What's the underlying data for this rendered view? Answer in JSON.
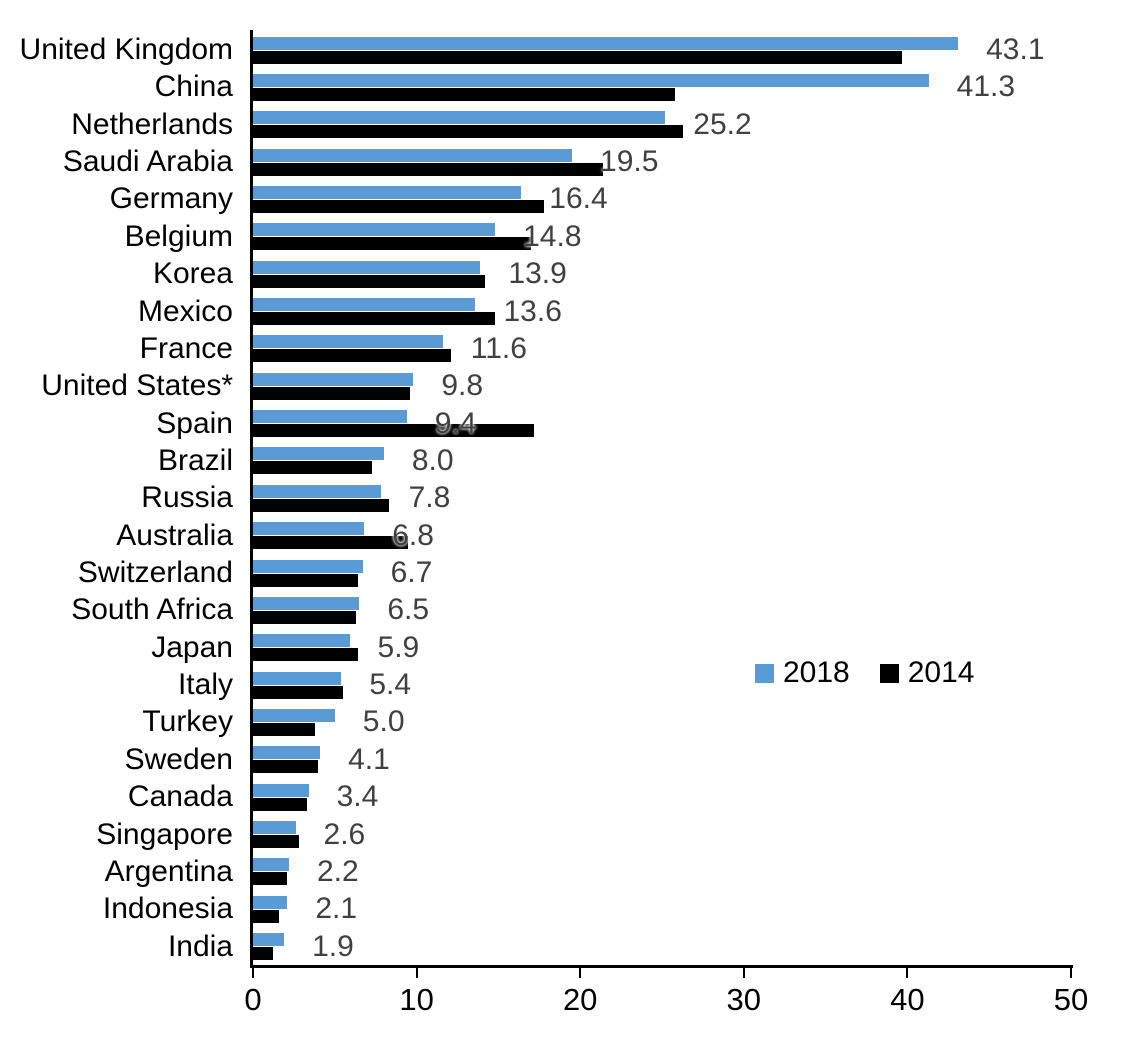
{
  "chart_data": {
    "type": "bar",
    "orientation": "horizontal",
    "title": "",
    "xlabel": "",
    "ylabel": "",
    "xlim": [
      0,
      50
    ],
    "x_ticks": [
      "0",
      "10",
      "20",
      "30",
      "40",
      "50"
    ],
    "grid": false,
    "legend_position": "middle-right",
    "categories": [
      "United Kingdom",
      "China",
      "Netherlands",
      "Saudi Arabia",
      "Germany",
      "Belgium",
      "Korea",
      "Mexico",
      "France",
      "United States*",
      "Spain",
      "Brazil",
      "Russia",
      "Australia",
      "Switzerland",
      "South Africa",
      "Japan",
      "Italy",
      "Turkey",
      "Sweden",
      "Canada",
      "Singapore",
      "Argentina",
      "Indonesia",
      "India"
    ],
    "series": [
      {
        "name": "2018",
        "color": "#5B9BD5",
        "values": [
          43.1,
          41.3,
          25.2,
          19.5,
          16.4,
          14.8,
          13.9,
          13.6,
          11.6,
          9.8,
          9.4,
          8.0,
          7.8,
          6.8,
          6.7,
          6.5,
          5.9,
          5.4,
          5.0,
          4.1,
          3.4,
          2.6,
          2.2,
          2.1,
          1.9
        ]
      },
      {
        "name": "2014",
        "color": "#000000",
        "values": [
          39.7,
          25.8,
          26.3,
          21.4,
          17.8,
          17.0,
          14.2,
          14.8,
          12.1,
          9.6,
          17.2,
          7.3,
          8.3,
          9.5,
          6.4,
          6.3,
          6.4,
          5.5,
          3.8,
          4.0,
          3.3,
          2.8,
          2.1,
          1.6,
          1.2
        ]
      }
    ],
    "data_labels": {
      "series": "2018",
      "values": [
        "43.1",
        "41.3",
        "25.2",
        "19.5",
        "16.4",
        "14.8",
        "13.9",
        "13.6",
        "11.6",
        "9.8",
        "9.4",
        "8.0",
        "7.8",
        "6.8",
        "6.7",
        "6.5",
        "5.9",
        "5.4",
        "5.0",
        "4.1",
        "3.4",
        "2.6",
        "2.2",
        "2.1",
        "1.9"
      ],
      "color": "#404040"
    }
  },
  "legend": {
    "entries": [
      {
        "label": "2018",
        "color": "#5B9BD5"
      },
      {
        "label": "2014",
        "color": "#000000"
      }
    ]
  },
  "colors": {
    "series_2018": "#5B9BD5",
    "series_2014": "#000000",
    "axis": "#000000",
    "data_label": "#404040",
    "background": "#ffffff"
  }
}
